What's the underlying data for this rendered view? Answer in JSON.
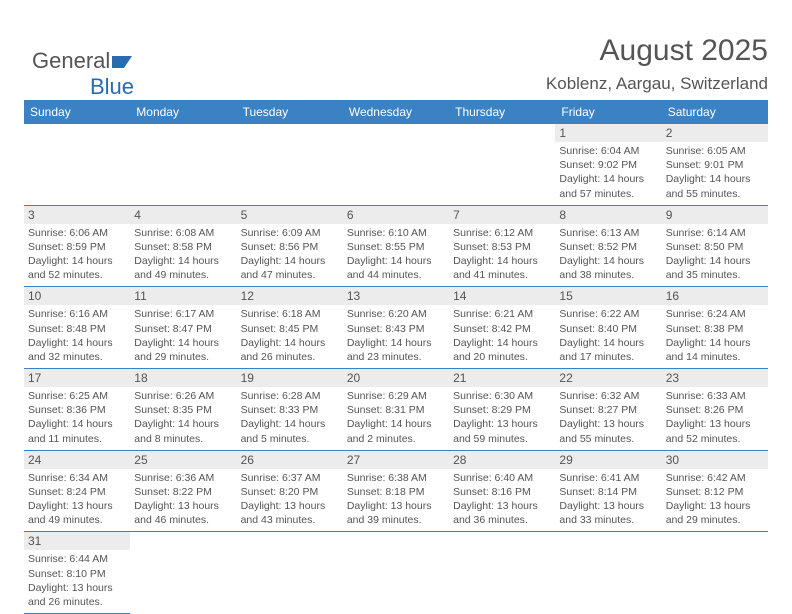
{
  "logo": {
    "word1": "General",
    "word2": "Blue"
  },
  "title": "August 2025",
  "subtitle": "Koblenz, Aargau, Switzerland",
  "header_bg": "#3b82c4",
  "border_color": "#3b82c4",
  "daynum_bg": "#ececec",
  "text_color": "#555555",
  "font_family": "Arial",
  "columns": [
    "Sunday",
    "Monday",
    "Tuesday",
    "Wednesday",
    "Thursday",
    "Friday",
    "Saturday"
  ],
  "weeks": [
    [
      null,
      null,
      null,
      null,
      null,
      {
        "n": "1",
        "sr": "Sunrise: 6:04 AM",
        "ss": "Sunset: 9:02 PM",
        "d1": "Daylight: 14 hours",
        "d2": "and 57 minutes."
      },
      {
        "n": "2",
        "sr": "Sunrise: 6:05 AM",
        "ss": "Sunset: 9:01 PM",
        "d1": "Daylight: 14 hours",
        "d2": "and 55 minutes."
      }
    ],
    [
      {
        "n": "3",
        "sr": "Sunrise: 6:06 AM",
        "ss": "Sunset: 8:59 PM",
        "d1": "Daylight: 14 hours",
        "d2": "and 52 minutes."
      },
      {
        "n": "4",
        "sr": "Sunrise: 6:08 AM",
        "ss": "Sunset: 8:58 PM",
        "d1": "Daylight: 14 hours",
        "d2": "and 49 minutes."
      },
      {
        "n": "5",
        "sr": "Sunrise: 6:09 AM",
        "ss": "Sunset: 8:56 PM",
        "d1": "Daylight: 14 hours",
        "d2": "and 47 minutes."
      },
      {
        "n": "6",
        "sr": "Sunrise: 6:10 AM",
        "ss": "Sunset: 8:55 PM",
        "d1": "Daylight: 14 hours",
        "d2": "and 44 minutes."
      },
      {
        "n": "7",
        "sr": "Sunrise: 6:12 AM",
        "ss": "Sunset: 8:53 PM",
        "d1": "Daylight: 14 hours",
        "d2": "and 41 minutes."
      },
      {
        "n": "8",
        "sr": "Sunrise: 6:13 AM",
        "ss": "Sunset: 8:52 PM",
        "d1": "Daylight: 14 hours",
        "d2": "and 38 minutes."
      },
      {
        "n": "9",
        "sr": "Sunrise: 6:14 AM",
        "ss": "Sunset: 8:50 PM",
        "d1": "Daylight: 14 hours",
        "d2": "and 35 minutes."
      }
    ],
    [
      {
        "n": "10",
        "sr": "Sunrise: 6:16 AM",
        "ss": "Sunset: 8:48 PM",
        "d1": "Daylight: 14 hours",
        "d2": "and 32 minutes."
      },
      {
        "n": "11",
        "sr": "Sunrise: 6:17 AM",
        "ss": "Sunset: 8:47 PM",
        "d1": "Daylight: 14 hours",
        "d2": "and 29 minutes."
      },
      {
        "n": "12",
        "sr": "Sunrise: 6:18 AM",
        "ss": "Sunset: 8:45 PM",
        "d1": "Daylight: 14 hours",
        "d2": "and 26 minutes."
      },
      {
        "n": "13",
        "sr": "Sunrise: 6:20 AM",
        "ss": "Sunset: 8:43 PM",
        "d1": "Daylight: 14 hours",
        "d2": "and 23 minutes."
      },
      {
        "n": "14",
        "sr": "Sunrise: 6:21 AM",
        "ss": "Sunset: 8:42 PM",
        "d1": "Daylight: 14 hours",
        "d2": "and 20 minutes."
      },
      {
        "n": "15",
        "sr": "Sunrise: 6:22 AM",
        "ss": "Sunset: 8:40 PM",
        "d1": "Daylight: 14 hours",
        "d2": "and 17 minutes."
      },
      {
        "n": "16",
        "sr": "Sunrise: 6:24 AM",
        "ss": "Sunset: 8:38 PM",
        "d1": "Daylight: 14 hours",
        "d2": "and 14 minutes."
      }
    ],
    [
      {
        "n": "17",
        "sr": "Sunrise: 6:25 AM",
        "ss": "Sunset: 8:36 PM",
        "d1": "Daylight: 14 hours",
        "d2": "and 11 minutes."
      },
      {
        "n": "18",
        "sr": "Sunrise: 6:26 AM",
        "ss": "Sunset: 8:35 PM",
        "d1": "Daylight: 14 hours",
        "d2": "and 8 minutes."
      },
      {
        "n": "19",
        "sr": "Sunrise: 6:28 AM",
        "ss": "Sunset: 8:33 PM",
        "d1": "Daylight: 14 hours",
        "d2": "and 5 minutes."
      },
      {
        "n": "20",
        "sr": "Sunrise: 6:29 AM",
        "ss": "Sunset: 8:31 PM",
        "d1": "Daylight: 14 hours",
        "d2": "and 2 minutes."
      },
      {
        "n": "21",
        "sr": "Sunrise: 6:30 AM",
        "ss": "Sunset: 8:29 PM",
        "d1": "Daylight: 13 hours",
        "d2": "and 59 minutes."
      },
      {
        "n": "22",
        "sr": "Sunrise: 6:32 AM",
        "ss": "Sunset: 8:27 PM",
        "d1": "Daylight: 13 hours",
        "d2": "and 55 minutes."
      },
      {
        "n": "23",
        "sr": "Sunrise: 6:33 AM",
        "ss": "Sunset: 8:26 PM",
        "d1": "Daylight: 13 hours",
        "d2": "and 52 minutes."
      }
    ],
    [
      {
        "n": "24",
        "sr": "Sunrise: 6:34 AM",
        "ss": "Sunset: 8:24 PM",
        "d1": "Daylight: 13 hours",
        "d2": "and 49 minutes."
      },
      {
        "n": "25",
        "sr": "Sunrise: 6:36 AM",
        "ss": "Sunset: 8:22 PM",
        "d1": "Daylight: 13 hours",
        "d2": "and 46 minutes."
      },
      {
        "n": "26",
        "sr": "Sunrise: 6:37 AM",
        "ss": "Sunset: 8:20 PM",
        "d1": "Daylight: 13 hours",
        "d2": "and 43 minutes."
      },
      {
        "n": "27",
        "sr": "Sunrise: 6:38 AM",
        "ss": "Sunset: 8:18 PM",
        "d1": "Daylight: 13 hours",
        "d2": "and 39 minutes."
      },
      {
        "n": "28",
        "sr": "Sunrise: 6:40 AM",
        "ss": "Sunset: 8:16 PM",
        "d1": "Daylight: 13 hours",
        "d2": "and 36 minutes."
      },
      {
        "n": "29",
        "sr": "Sunrise: 6:41 AM",
        "ss": "Sunset: 8:14 PM",
        "d1": "Daylight: 13 hours",
        "d2": "and 33 minutes."
      },
      {
        "n": "30",
        "sr": "Sunrise: 6:42 AM",
        "ss": "Sunset: 8:12 PM",
        "d1": "Daylight: 13 hours",
        "d2": "and 29 minutes."
      }
    ],
    [
      {
        "n": "31",
        "sr": "Sunrise: 6:44 AM",
        "ss": "Sunset: 8:10 PM",
        "d1": "Daylight: 13 hours",
        "d2": "and 26 minutes."
      },
      null,
      null,
      null,
      null,
      null,
      null
    ]
  ]
}
